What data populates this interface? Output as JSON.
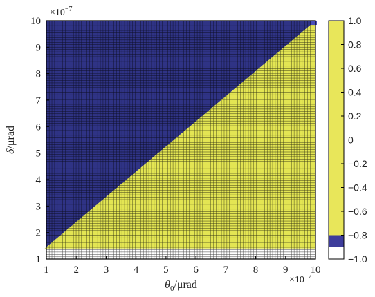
{
  "chart_data": {
    "type": "heatmap",
    "title": "",
    "xlabel": "θ0/μrad",
    "xlabel_symbol": "θ",
    "xlabel_sub": "0",
    "xlabel_unit": "/μrad",
    "ylabel": "δ/μrad",
    "ylabel_symbol": "δ",
    "ylabel_unit": "/μrad",
    "x_multiplier": "×10",
    "x_multiplier_exp": "−7",
    "y_multiplier": "×10",
    "y_multiplier_exp": "−7",
    "xlim": [
      1,
      10
    ],
    "ylim": [
      1,
      10
    ],
    "x_ticks": [
      "1",
      "2",
      "3",
      "4",
      "5",
      "6",
      "7",
      "8",
      "9",
      "10"
    ],
    "y_ticks": [
      "1",
      "2",
      "3",
      "4",
      "5",
      "6",
      "7",
      "8",
      "9",
      "10"
    ],
    "grid_rows": 100,
    "grid_cols": 100,
    "regions": [
      {
        "value": -1,
        "rule": "delta < 1.4 (no data, white cells)"
      },
      {
        "value": -0.9,
        "rule": "delta >= 1.4 and delta > 0.95 * theta0 + 0.5"
      },
      {
        "value": 0.7,
        "rule": "delta >= 1.4 and delta <= 0.95 * theta0 + 0.5"
      }
    ],
    "colorbar": {
      "range": [
        -1,
        1
      ],
      "ticks": [
        "1.0",
        "0.8",
        "0.6",
        "0.4",
        "0.2",
        "0",
        "−0.2",
        "−0.4",
        "−0.6",
        "−0.8",
        "−1.0"
      ],
      "colormap": "parula",
      "bands": [
        {
          "from": -1.0,
          "to": -0.9,
          "color": "#ffffff"
        },
        {
          "from": -0.9,
          "to": -0.8,
          "color": "#3d3c9b"
        },
        {
          "from": -0.8,
          "to": 1.0,
          "color": "#e8e65a"
        }
      ]
    },
    "colors": {
      "low": "#2f3385",
      "high": "#e3e553",
      "empty": "#ffffff",
      "cell_border": "#000000"
    }
  }
}
